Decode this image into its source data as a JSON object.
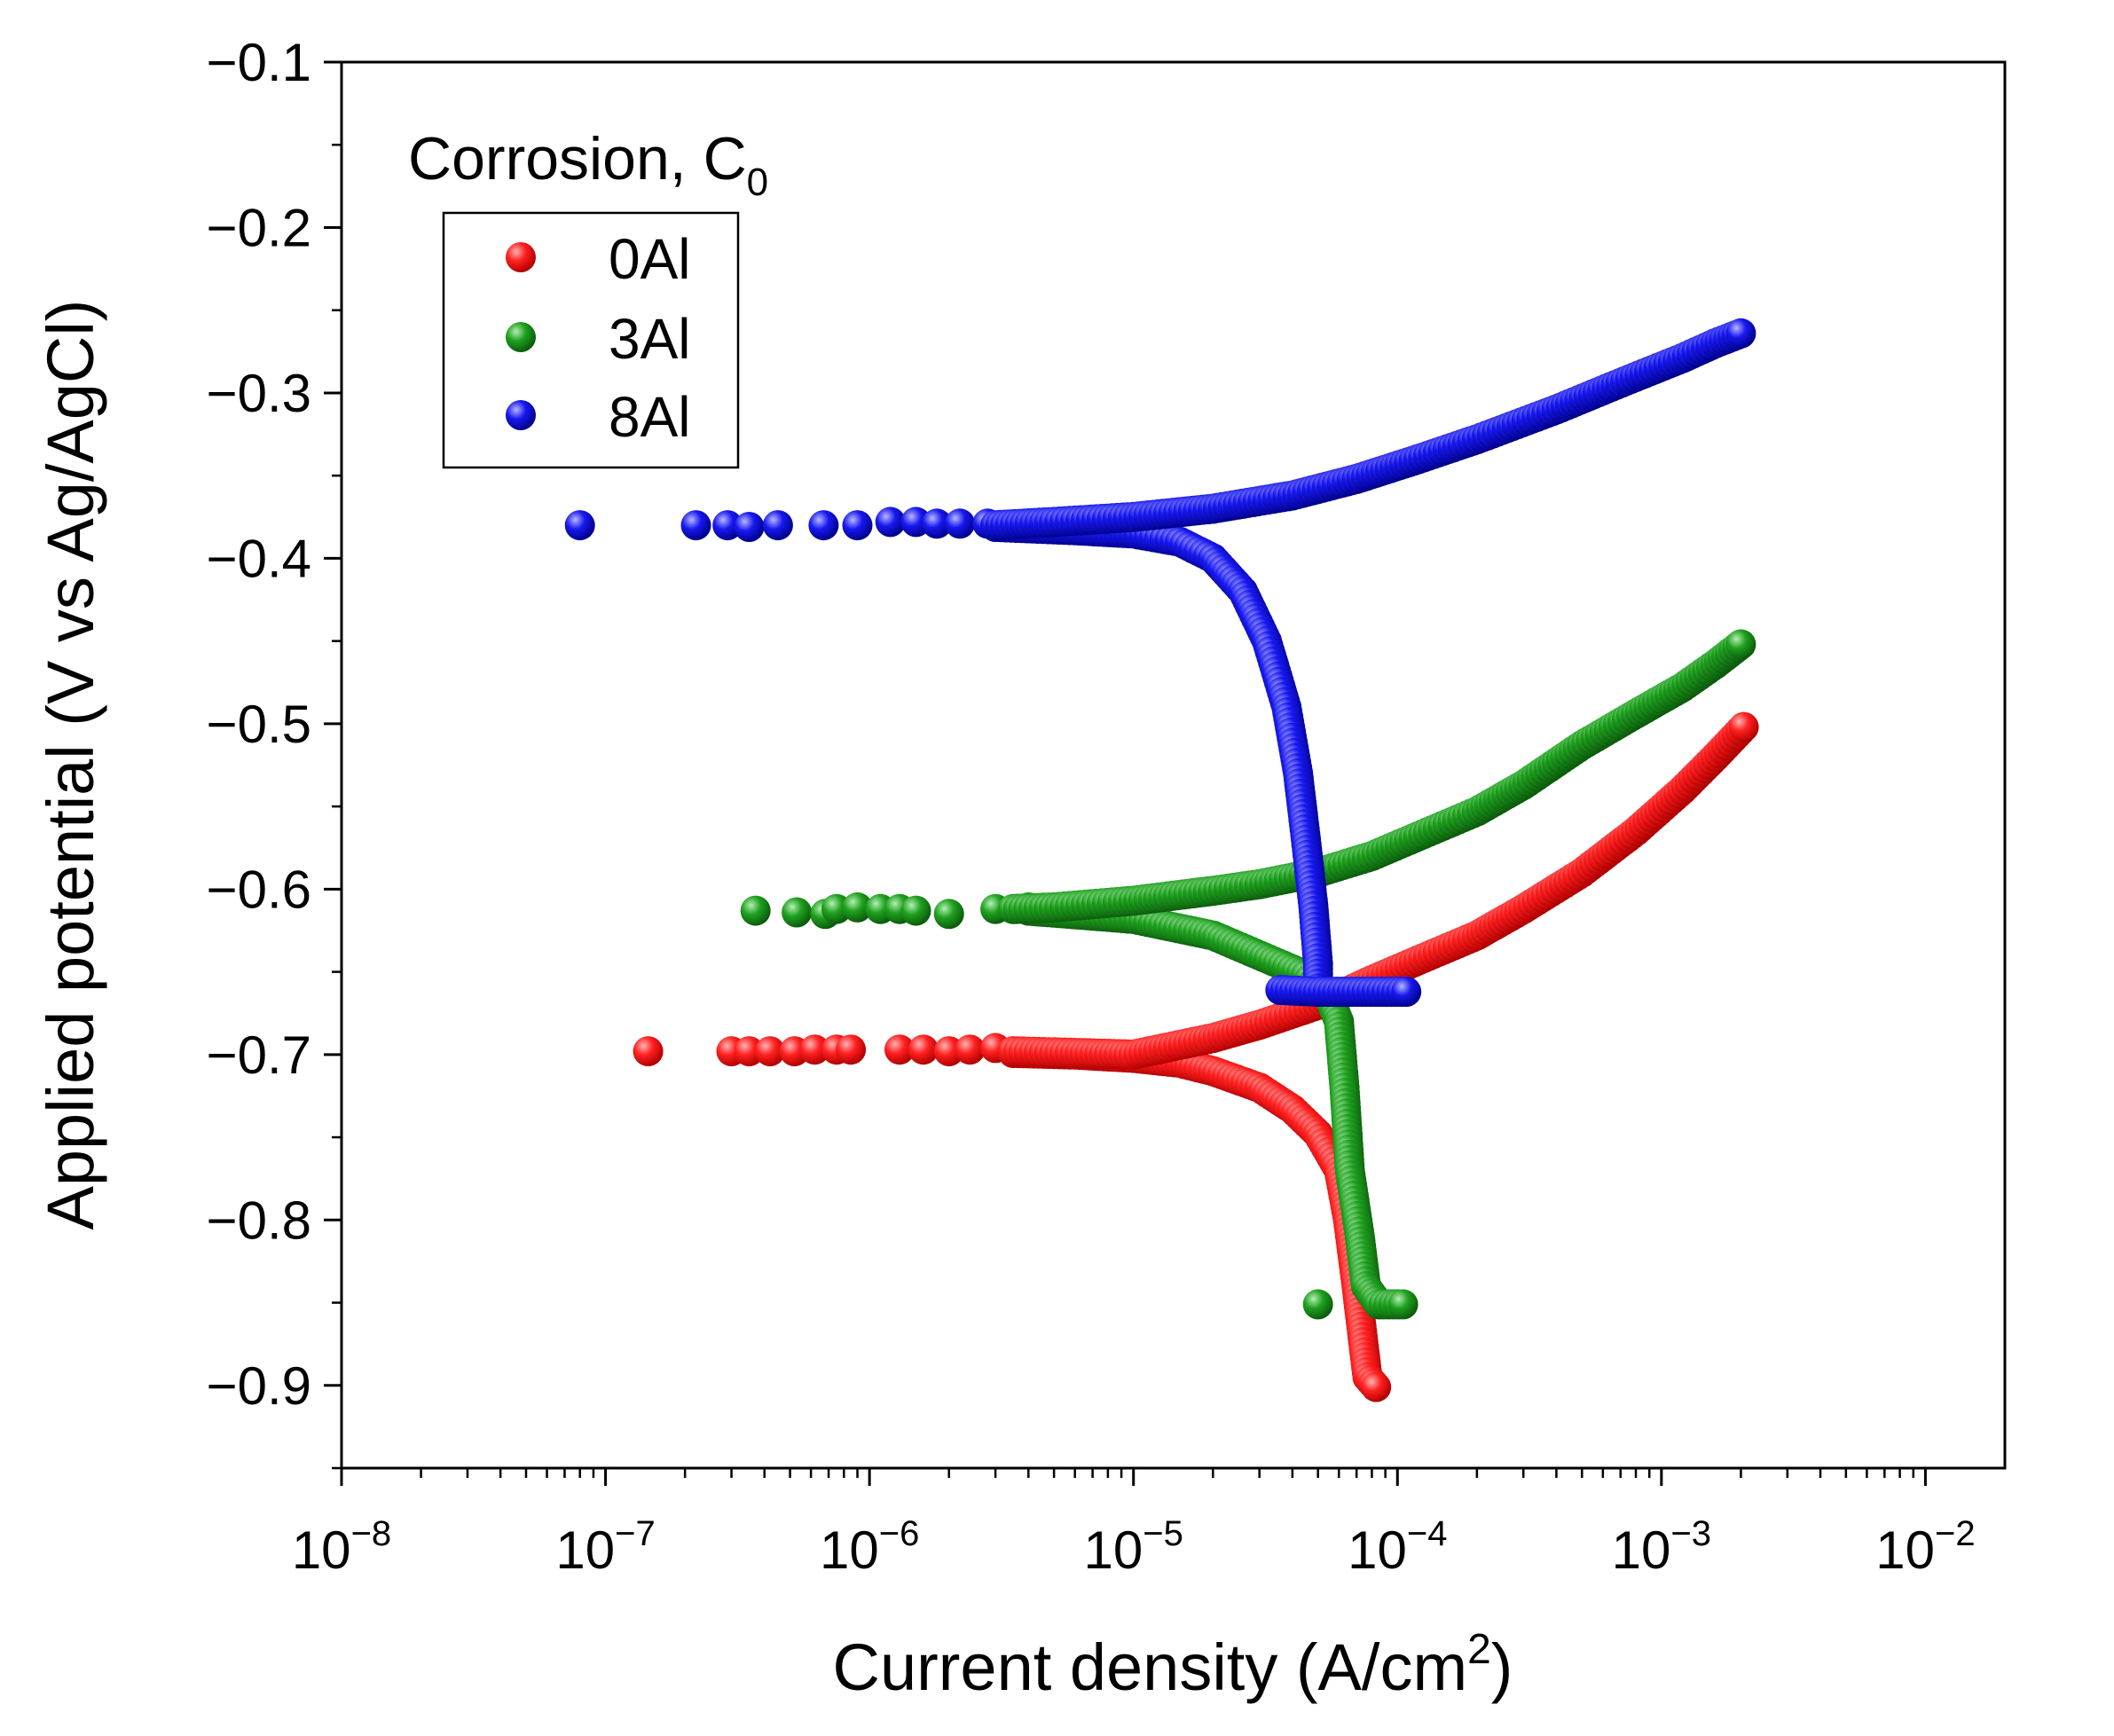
{
  "chart_data": {
    "type": "scatter",
    "title": "",
    "xlabel": "Current density (A/cm",
    "xlabel_sup": "2",
    "xlabel_end": ")",
    "ylabel": "Applied potential (V vs Ag/AgCl)",
    "xscale": "log",
    "xlim": [
      1e-08,
      0.02
    ],
    "ylim": [
      -0.95,
      -0.1
    ],
    "y_direction": "reversed",
    "x_ticks": [
      {
        "value": 1e-08,
        "base": "10",
        "exp": "-8"
      },
      {
        "value": 1e-07,
        "base": "10",
        "exp": "-7"
      },
      {
        "value": 1e-06,
        "base": "10",
        "exp": "-6"
      },
      {
        "value": 1e-05,
        "base": "10",
        "exp": "-5"
      },
      {
        "value": 0.0001,
        "base": "10",
        "exp": "-4"
      },
      {
        "value": 0.001,
        "base": "10",
        "exp": "-3"
      },
      {
        "value": 0.01,
        "base": "10",
        "exp": "-2"
      }
    ],
    "y_ticks": [
      {
        "value": -0.1,
        "label": "−0.1"
      },
      {
        "value": -0.2,
        "label": "−0.2"
      },
      {
        "value": -0.3,
        "label": "−0.3"
      },
      {
        "value": -0.4,
        "label": "−0.4"
      },
      {
        "value": -0.5,
        "label": "−0.5"
      },
      {
        "value": -0.6,
        "label": "−0.6"
      },
      {
        "value": -0.7,
        "label": "−0.7"
      },
      {
        "value": -0.8,
        "label": "−0.8"
      },
      {
        "value": -0.9,
        "label": "−0.9"
      }
    ],
    "annotation": {
      "text": "Corrosion, C",
      "sub": "0"
    },
    "legend_position": "top-left",
    "series": [
      {
        "name": "0Al",
        "color": "#ee1111",
        "marker": "sphere",
        "isolated_points": [
          [
            1.45e-07,
            -0.698
          ],
          [
            3e-07,
            -0.698
          ],
          [
            3.5e-07,
            -0.698
          ],
          [
            4.2e-07,
            -0.698
          ],
          [
            5.2e-07,
            -0.698
          ],
          [
            6.2e-07,
            -0.697
          ],
          [
            7.5e-07,
            -0.697
          ],
          [
            8.5e-07,
            -0.697
          ],
          [
            1.3e-06,
            -0.697
          ],
          [
            1.6e-06,
            -0.697
          ],
          [
            2e-06,
            -0.698
          ],
          [
            2.4e-06,
            -0.697
          ],
          [
            3e-06,
            -0.696
          ]
        ],
        "anodic_branch": [
          [
            3.5e-06,
            -0.698
          ],
          [
            6e-06,
            -0.699
          ],
          [
            1e-05,
            -0.7
          ],
          [
            2e-05,
            -0.69
          ],
          [
            3e-05,
            -0.682
          ],
          [
            5e-05,
            -0.67
          ],
          [
            8e-05,
            -0.655
          ],
          [
            0.00012,
            -0.643
          ],
          [
            0.0002,
            -0.628
          ],
          [
            0.0003,
            -0.612
          ],
          [
            0.0005,
            -0.59
          ],
          [
            0.0008,
            -0.565
          ],
          [
            0.0012,
            -0.54
          ],
          [
            0.0016,
            -0.52
          ],
          [
            0.00205,
            -0.502
          ]
        ],
        "cathodic_branch": [
          [
            3.5e-06,
            -0.699
          ],
          [
            6e-06,
            -0.7
          ],
          [
            1e-05,
            -0.702
          ],
          [
            1.5e-05,
            -0.705
          ],
          [
            2e-05,
            -0.71
          ],
          [
            3e-05,
            -0.72
          ],
          [
            4e-05,
            -0.733
          ],
          [
            5e-05,
            -0.748
          ],
          [
            6e-05,
            -0.77
          ],
          [
            6.5e-05,
            -0.8
          ],
          [
            7e-05,
            -0.84
          ],
          [
            7.5e-05,
            -0.88
          ],
          [
            7.7e-05,
            -0.895
          ],
          [
            8.3e-05,
            -0.901
          ]
        ]
      },
      {
        "name": "3Al",
        "color": "#1a9a1a",
        "marker": "sphere",
        "isolated_points": [
          [
            3.7e-07,
            -0.613
          ],
          [
            5.3e-07,
            -0.614
          ],
          [
            6.8e-07,
            -0.615
          ],
          [
            7.5e-07,
            -0.612
          ],
          [
            9e-07,
            -0.611
          ],
          [
            1.1e-06,
            -0.612
          ],
          [
            1.3e-06,
            -0.612
          ],
          [
            1.5e-06,
            -0.613
          ],
          [
            2e-06,
            -0.615
          ],
          [
            3e-06,
            -0.612
          ],
          [
            3.6e-06,
            -0.612
          ],
          [
            4e-06,
            -0.611
          ],
          [
            5e-06,
            -0.612
          ],
          [
            5e-05,
            -0.851
          ]
        ],
        "anodic_branch": [
          [
            3.5e-06,
            -0.612
          ],
          [
            5e-06,
            -0.611
          ],
          [
            1e-05,
            -0.607
          ],
          [
            2e-05,
            -0.601
          ],
          [
            3e-05,
            -0.597
          ],
          [
            5e-05,
            -0.59
          ],
          [
            8e-05,
            -0.58
          ],
          [
            0.00012,
            -0.568
          ],
          [
            0.0002,
            -0.553
          ],
          [
            0.0003,
            -0.537
          ],
          [
            0.0005,
            -0.513
          ],
          [
            0.0008,
            -0.494
          ],
          [
            0.0012,
            -0.478
          ],
          [
            0.0016,
            -0.464
          ],
          [
            0.002,
            -0.452
          ]
        ],
        "cathodic_branch": [
          [
            4e-06,
            -0.613
          ],
          [
            7e-06,
            -0.616
          ],
          [
            1e-05,
            -0.618
          ],
          [
            2e-05,
            -0.628
          ],
          [
            3e-05,
            -0.64
          ],
          [
            4.5e-05,
            -0.652
          ],
          [
            5.5e-05,
            -0.665
          ],
          [
            6e-05,
            -0.68
          ],
          [
            6.3e-05,
            -0.72
          ],
          [
            6.6e-05,
            -0.77
          ],
          [
            7.2e-05,
            -0.81
          ],
          [
            7.6e-05,
            -0.84
          ],
          [
            8.5e-05,
            -0.851
          ],
          [
            0.000105,
            -0.851
          ]
        ]
      },
      {
        "name": "8Al",
        "color": "#1515ee",
        "marker": "sphere",
        "isolated_points": [
          [
            8e-08,
            -0.38
          ],
          [
            2.2e-07,
            -0.38
          ],
          [
            2.9e-07,
            -0.38
          ],
          [
            3.5e-07,
            -0.381
          ],
          [
            4.5e-07,
            -0.38
          ],
          [
            6.7e-07,
            -0.38
          ],
          [
            9e-07,
            -0.38
          ],
          [
            1.2e-06,
            -0.378
          ],
          [
            1.5e-06,
            -0.378
          ],
          [
            1.8e-06,
            -0.379
          ],
          [
            2.2e-06,
            -0.379
          ],
          [
            2.8e-06,
            -0.379
          ]
        ],
        "anodic_branch": [
          [
            3e-06,
            -0.38
          ],
          [
            5e-06,
            -0.378
          ],
          [
            1e-05,
            -0.375
          ],
          [
            2e-05,
            -0.37
          ],
          [
            4e-05,
            -0.362
          ],
          [
            7e-05,
            -0.352
          ],
          [
            0.00012,
            -0.34
          ],
          [
            0.0002,
            -0.328
          ],
          [
            0.0004,
            -0.31
          ],
          [
            0.0007,
            -0.294
          ],
          [
            0.0012,
            -0.279
          ],
          [
            0.0016,
            -0.27
          ],
          [
            0.002,
            -0.264
          ]
        ],
        "cathodic_branch": [
          [
            3e-06,
            -0.381
          ],
          [
            6e-06,
            -0.383
          ],
          [
            1e-05,
            -0.385
          ],
          [
            1.5e-05,
            -0.39
          ],
          [
            2e-05,
            -0.4
          ],
          [
            2.6e-05,
            -0.42
          ],
          [
            3.2e-05,
            -0.45
          ],
          [
            3.8e-05,
            -0.49
          ],
          [
            4.2e-05,
            -0.53
          ],
          [
            4.5e-05,
            -0.57
          ],
          [
            4.8e-05,
            -0.61
          ],
          [
            5e-05,
            -0.645
          ],
          [
            5e-05,
            -0.66
          ]
        ],
        "bottom_segment": [
          [
            3.6e-05,
            -0.661
          ],
          [
            5e-05,
            -0.662
          ],
          [
            7e-05,
            -0.662
          ],
          [
            0.000108,
            -0.662
          ]
        ]
      }
    ]
  }
}
